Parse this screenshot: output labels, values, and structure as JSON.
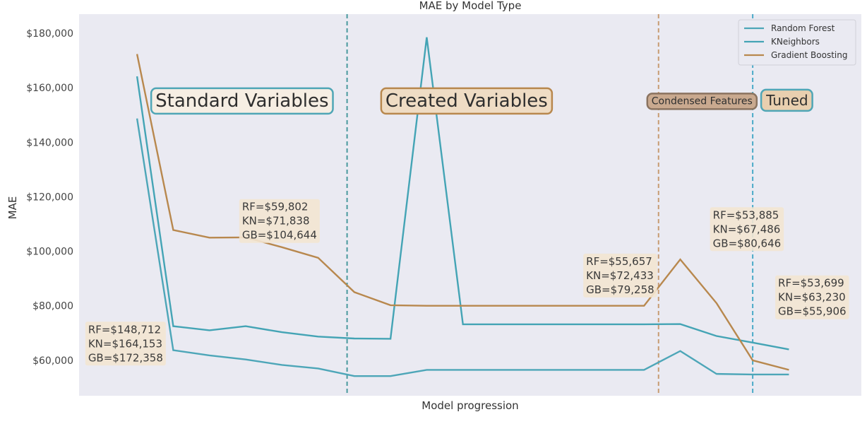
{
  "colors": {
    "plot_bg": "#EAEAF2",
    "random_forest": "#4DA6B8",
    "kneighbors": "#44A4B5",
    "gradient_boosting": "#B8884E",
    "annot_bg": "#F3E6D2",
    "section_created": "#EFDCC4",
    "section_condensed": "#C9A98F",
    "vline_teal": "#4A9A9E",
    "vline_tan": "#C79B72",
    "vline_blue": "#4AAAC8"
  },
  "chart_data": {
    "type": "line",
    "title": "MAE by Model Type",
    "xlabel": "Model progression",
    "ylabel": "MAE",
    "ylim": [
      47000,
      187000
    ],
    "xlim": [
      -1.6,
      20
    ],
    "grid": false,
    "legend_position": "top-right",
    "yticks": [
      60000,
      80000,
      100000,
      120000,
      140000,
      160000,
      180000
    ],
    "ytick_labels": [
      "$60,000",
      "$80,000",
      "$100,000",
      "$120,000",
      "$140,000",
      "$160,000",
      "$180,000"
    ],
    "x": [
      0,
      1,
      2,
      3,
      4,
      5,
      6,
      7,
      8,
      9,
      10,
      11,
      12,
      13,
      14,
      15,
      16,
      17,
      18
    ],
    "series": [
      {
        "name": "Random Forest",
        "color_key": "random_forest",
        "values": [
          148712,
          63700,
          61800,
          60300,
          58300,
          57000,
          54200,
          54200,
          56500,
          56500,
          56500,
          56500,
          56500,
          56500,
          56500,
          63400,
          55000,
          54800,
          54800
        ]
      },
      {
        "name": "KNeighbors",
        "color_key": "kneighbors",
        "values": [
          164153,
          72500,
          71000,
          72500,
          70300,
          68700,
          68000,
          67900,
          178500,
          73200,
          73200,
          73200,
          73200,
          73200,
          73200,
          73300,
          68900,
          66500,
          64000
        ]
      },
      {
        "name": "Gradient Boosting",
        "color_key": "gradient_boosting",
        "values": [
          172358,
          107800,
          105000,
          105100,
          101500,
          97600,
          85000,
          80200,
          80000,
          80000,
          80000,
          80000,
          80000,
          80000,
          80000,
          97000,
          81000,
          60000,
          56500
        ]
      }
    ],
    "vlines": [
      {
        "x": 5.8,
        "color_key": "vline_teal"
      },
      {
        "x": 14.4,
        "color_key": "vline_tan"
      },
      {
        "x": 17.0,
        "color_key": "vline_blue"
      }
    ],
    "sections": [
      {
        "label": "Standard Variables",
        "x": 2.9,
        "y": 155000,
        "bg": "#F6EEE3",
        "border": "#4FA6B6",
        "size": 26
      },
      {
        "label": "Created Variables",
        "x": 9.1,
        "y": 155000,
        "bg": "#EFDCC4",
        "border": "#B8884E",
        "size": 26
      },
      {
        "label": "Condensed Features",
        "x": 15.6,
        "y": 155000,
        "bg": "#C9A98F",
        "border": "#8A7360",
        "size": 14
      },
      {
        "label": "Tuned",
        "x": 17.95,
        "y": 155000,
        "bg": "#E9CFAF",
        "border": "#4FA6B6",
        "size": 20
      }
    ],
    "annotations": [
      {
        "lines": [
          "RF=$148,712",
          "KN=$164,153",
          "GB=$172,358"
        ],
        "x": -1.35,
        "y": 70000
      },
      {
        "lines": [
          "RF=$59,802",
          "KN=$71,838",
          "GB=$104,644"
        ],
        "x": 2.9,
        "y": 115000
      },
      {
        "lines": [
          "RF=$55,657",
          "KN=$72,433",
          "GB=$79,258"
        ],
        "x": 12.4,
        "y": 95000
      },
      {
        "lines": [
          "RF=$53,885",
          "KN=$67,486",
          "GB=$80,646"
        ],
        "x": 15.9,
        "y": 112000
      },
      {
        "lines": [
          "RF=$53,699",
          "KN=$63,230",
          "GB=$55,906"
        ],
        "x": 17.7,
        "y": 87000
      }
    ]
  }
}
